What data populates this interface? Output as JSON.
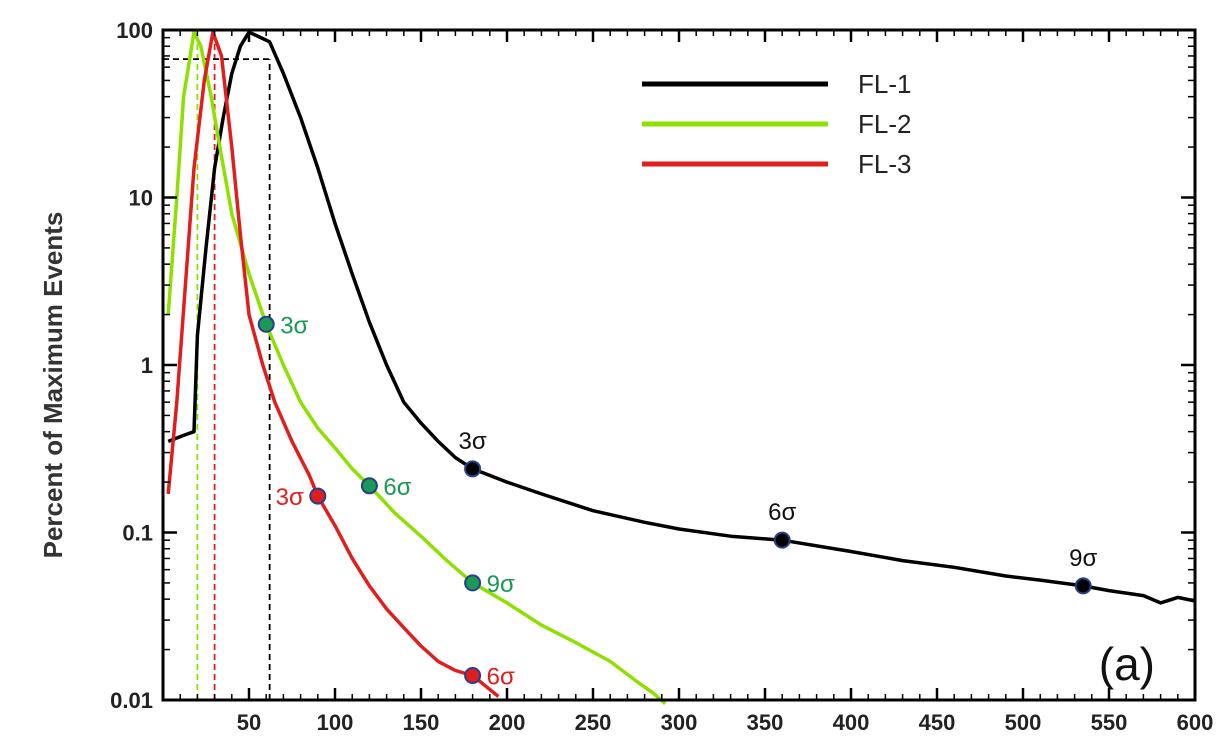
{
  "chart_data": {
    "type": "line",
    "title": "",
    "xlabel": "",
    "ylabel": "Percent of Maximum Events",
    "xlim": [
      0,
      600
    ],
    "ylim": [
      0.01,
      100
    ],
    "yscale": "log",
    "x_ticks": [
      50,
      100,
      150,
      200,
      250,
      300,
      350,
      400,
      450,
      500,
      550,
      600
    ],
    "y_ticks": [
      0.01,
      0.1,
      1,
      10,
      100
    ],
    "y_tick_labels": [
      "0.01",
      "0.1",
      "1",
      "10",
      "100"
    ],
    "panel_label": "(a)",
    "legend_position": "top-right",
    "series": [
      {
        "name": "FL-1",
        "color": "#000000",
        "points": [
          [
            3,
            0.35
          ],
          [
            12,
            0.38
          ],
          [
            18,
            0.4
          ],
          [
            20,
            1.5
          ],
          [
            25,
            5
          ],
          [
            30,
            15
          ],
          [
            35,
            30
          ],
          [
            40,
            55
          ],
          [
            45,
            80
          ],
          [
            50,
            97
          ],
          [
            55,
            92
          ],
          [
            62,
            85
          ],
          [
            70,
            55
          ],
          [
            80,
            30
          ],
          [
            90,
            15
          ],
          [
            100,
            7
          ],
          [
            110,
            3.5
          ],
          [
            120,
            1.8
          ],
          [
            130,
            1.0
          ],
          [
            140,
            0.6
          ],
          [
            150,
            0.45
          ],
          [
            160,
            0.35
          ],
          [
            170,
            0.28
          ],
          [
            180,
            0.24
          ],
          [
            200,
            0.2
          ],
          [
            220,
            0.17
          ],
          [
            250,
            0.135
          ],
          [
            280,
            0.115
          ],
          [
            300,
            0.105
          ],
          [
            330,
            0.095
          ],
          [
            360,
            0.09
          ],
          [
            400,
            0.077
          ],
          [
            430,
            0.068
          ],
          [
            460,
            0.062
          ],
          [
            490,
            0.055
          ],
          [
            510,
            0.052
          ],
          [
            535,
            0.048
          ],
          [
            550,
            0.045
          ],
          [
            570,
            0.042
          ],
          [
            580,
            0.038
          ],
          [
            590,
            0.041
          ],
          [
            600,
            0.039
          ]
        ],
        "sigma_markers": [
          {
            "x": 180,
            "y": 0.24,
            "label": "3σ"
          },
          {
            "x": 360,
            "y": 0.09,
            "label": "6σ"
          },
          {
            "x": 535,
            "y": 0.048,
            "label": "9σ"
          }
        ]
      },
      {
        "name": "FL-2",
        "color": "#8ee000",
        "points": [
          [
            3,
            2.0
          ],
          [
            8,
            10
          ],
          [
            12,
            40
          ],
          [
            18,
            97
          ],
          [
            22,
            80
          ],
          [
            28,
            40
          ],
          [
            33,
            20
          ],
          [
            40,
            8
          ],
          [
            50,
            3.5
          ],
          [
            60,
            1.75
          ],
          [
            70,
            1.0
          ],
          [
            80,
            0.6
          ],
          [
            90,
            0.42
          ],
          [
            100,
            0.32
          ],
          [
            110,
            0.24
          ],
          [
            120,
            0.19
          ],
          [
            135,
            0.13
          ],
          [
            150,
            0.095
          ],
          [
            165,
            0.068
          ],
          [
            180,
            0.05
          ],
          [
            200,
            0.038
          ],
          [
            220,
            0.028
          ],
          [
            240,
            0.022
          ],
          [
            260,
            0.017
          ],
          [
            275,
            0.013
          ],
          [
            285,
            0.011
          ],
          [
            292,
            0.0095
          ]
        ],
        "sigma_markers": [
          {
            "x": 60,
            "y": 1.75,
            "label": "3σ"
          },
          {
            "x": 120,
            "y": 0.19,
            "label": "6σ"
          },
          {
            "x": 180,
            "y": 0.05,
            "label": "9σ"
          }
        ]
      },
      {
        "name": "FL-3",
        "color": "#e01e1e",
        "points": [
          [
            3,
            0.17
          ],
          [
            8,
            0.6
          ],
          [
            13,
            3
          ],
          [
            18,
            15
          ],
          [
            24,
            50
          ],
          [
            29,
            97
          ],
          [
            34,
            70
          ],
          [
            40,
            20
          ],
          [
            45,
            6
          ],
          [
            50,
            2
          ],
          [
            58,
            1.0
          ],
          [
            65,
            0.6
          ],
          [
            75,
            0.35
          ],
          [
            85,
            0.22
          ],
          [
            90,
            0.165
          ],
          [
            100,
            0.11
          ],
          [
            110,
            0.07
          ],
          [
            120,
            0.048
          ],
          [
            130,
            0.035
          ],
          [
            140,
            0.027
          ],
          [
            150,
            0.021
          ],
          [
            160,
            0.017
          ],
          [
            170,
            0.015
          ],
          [
            180,
            0.014
          ],
          [
            188,
            0.012
          ],
          [
            195,
            0.0105
          ]
        ],
        "sigma_markers": [
          {
            "x": 90,
            "y": 0.165,
            "label": "3σ"
          },
          {
            "x": 180,
            "y": 0.014,
            "label": "6σ"
          }
        ]
      }
    ],
    "reference_lines": [
      {
        "x": 20,
        "color": "#8ee000"
      },
      {
        "x": 30,
        "color": "#e01e1e"
      },
      {
        "x": 62,
        "color": "#000000",
        "y_level": 67
      }
    ]
  }
}
